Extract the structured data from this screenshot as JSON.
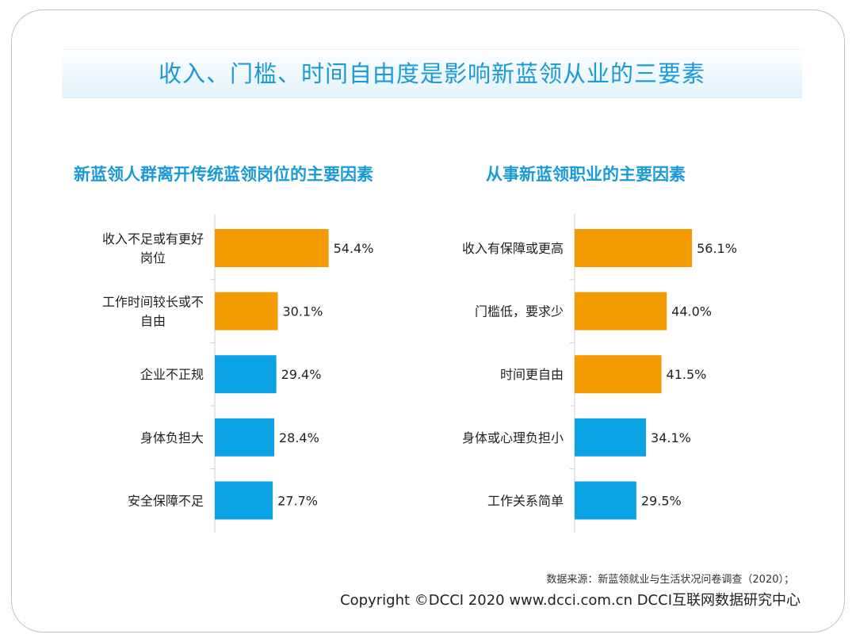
{
  "main_title": "收入、门槛、时间自由度是影响新蓝领从业的三要素",
  "source": "数据来源：新蓝领就业与生活状况问卷调查（2020）；",
  "copyright": "Copyright ©DCCI 2020  www.dcci.com.cn   DCCI互联网数据研究中心",
  "colors": {
    "orange": "#f39b00",
    "blue": "#0ca3e5",
    "title": "#1a9ad6"
  },
  "chart_data": [
    {
      "type": "bar",
      "orientation": "horizontal",
      "title": "新蓝领人群离开传统蓝领岗位的主要因素",
      "categories": [
        "收入不足或有更好岗位",
        "工作时间较长或不自由",
        "企业不正规",
        "身体负担大",
        "安全保障不足"
      ],
      "category_lines": [
        [
          "收入不足或有更好",
          "岗位"
        ],
        [
          "工作时间较长或不",
          "自由"
        ],
        [
          "企业不正规"
        ],
        [
          "身体负担大"
        ],
        [
          "安全保障不足"
        ]
      ],
      "values": [
        54.4,
        30.1,
        29.4,
        28.4,
        27.7
      ],
      "labels": [
        "54.4%",
        "30.1%",
        "29.4%",
        "28.4%",
        "27.7%"
      ],
      "bar_colors": [
        "#f39b00",
        "#f39b00",
        "#0ca3e5",
        "#0ca3e5",
        "#0ca3e5"
      ],
      "xlim": [
        0,
        100
      ]
    },
    {
      "type": "bar",
      "orientation": "horizontal",
      "title": "从事新蓝领职业的主要因素",
      "categories": [
        "收入有保障或更高",
        "门槛低，要求少",
        "时间更自由",
        "身体或心理负担小",
        "工作关系简单"
      ],
      "category_lines": [
        [
          "收入有保障或更高"
        ],
        [
          "门槛低，要求少"
        ],
        [
          "时间更自由"
        ],
        [
          "身体或心理负担小"
        ],
        [
          "工作关系简单"
        ]
      ],
      "values": [
        56.1,
        44.0,
        41.5,
        34.1,
        29.5
      ],
      "labels": [
        "56.1%",
        "44.0%",
        "41.5%",
        "34.1%",
        "29.5%"
      ],
      "bar_colors": [
        "#f39b00",
        "#f39b00",
        "#f39b00",
        "#0ca3e5",
        "#0ca3e5"
      ],
      "xlim": [
        0,
        100
      ]
    }
  ]
}
